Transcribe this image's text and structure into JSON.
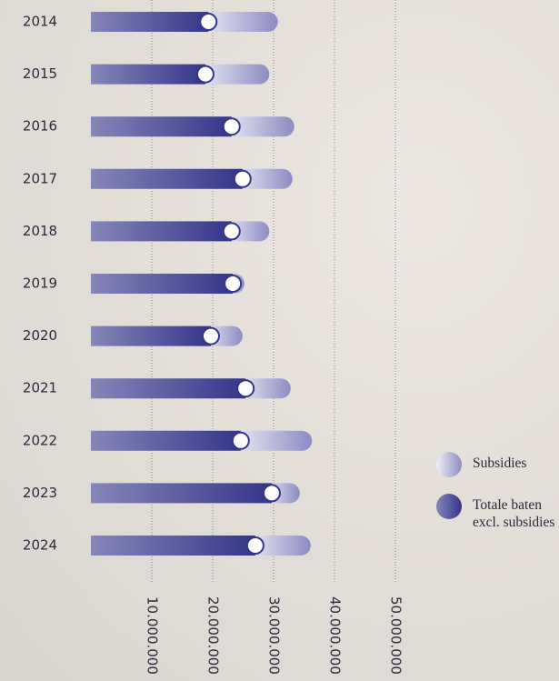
{
  "chart_data": {
    "type": "stacked-hbar",
    "categories": [
      "2014",
      "2015",
      "2016",
      "2017",
      "2018",
      "2019",
      "2020",
      "2021",
      "2022",
      "2023",
      "2024"
    ],
    "series": [
      {
        "name": "Totale baten excl. subsidies",
        "color": "#35358a",
        "values": [
          19300000,
          18800000,
          23100000,
          24900000,
          23100000,
          23300000,
          19700000,
          25400000,
          24600000,
          29700000,
          27000000
        ]
      },
      {
        "name": "Subsidies",
        "color": "#8d8bc2",
        "values": [
          11400000,
          10500000,
          10300000,
          8200000,
          6200000,
          1900000,
          5200000,
          7400000,
          11700000,
          4600000,
          9100000
        ]
      }
    ],
    "xlim": [
      0,
      75000000
    ],
    "xticks": [
      {
        "value": 10000000,
        "label": "10.000.000"
      },
      {
        "value": 20000000,
        "label": "20.000.000"
      },
      {
        "value": 30000000,
        "label": "30.000.000"
      },
      {
        "value": 40000000,
        "label": "40.000.000"
      },
      {
        "value": 50000000,
        "label": "50.000.000"
      }
    ],
    "grid": true
  }
}
